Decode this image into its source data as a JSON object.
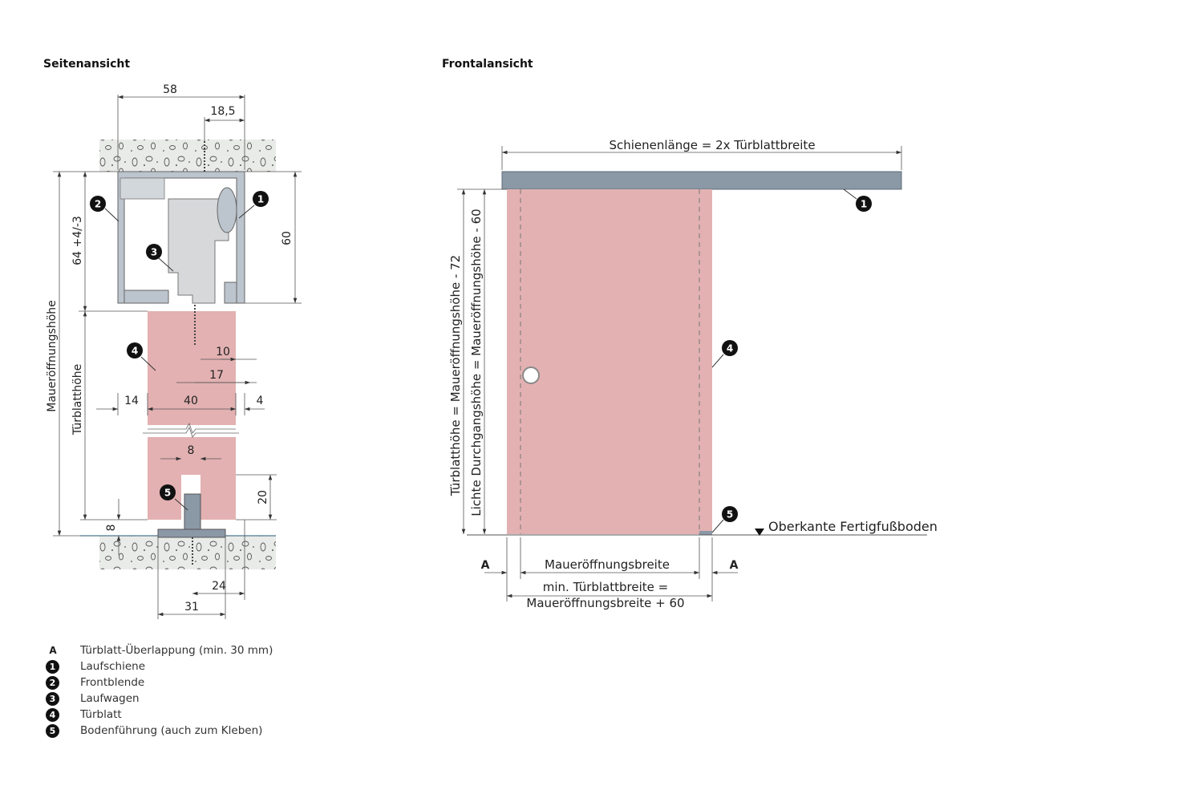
{
  "headings": {
    "side_view": "Seitenansicht",
    "front_view": "Frontalansicht"
  },
  "colors": {
    "door": "#e3b1b2",
    "rail": "#8b98a6",
    "profile": "#bcc4cd",
    "carriage": "#d6d8da",
    "concrete": "#e9ebe8",
    "line": "#333333"
  },
  "side_view": {
    "dims": {
      "total_depth": "58",
      "rail_offset": "18,5",
      "rail_height": "64 +4/-3",
      "rail_height_inner": "60",
      "opening_height": "Maueröffnungshöhe",
      "door_height": "Türblatthöhe",
      "screw_offset": "10",
      "screw_offset_2": "17",
      "gap_left": "14",
      "door_thickness": "40",
      "gap_right": "4",
      "groove_width": "8",
      "groove_depth": "20",
      "floor_gap": "8",
      "guide_offset": "24",
      "guide_width": "31"
    },
    "markers": [
      "2",
      "1",
      "3",
      "4",
      "5"
    ]
  },
  "front_view": {
    "rail_length": "Schienenlänge = 2x Türblattbreite",
    "door_height": "Türblatthöhe = Maueröffnungshöhe - 72",
    "clear_height": "Lichte Durchgangshöhe = Maueröffnungshöhe - 60",
    "floor_label": "Oberkante Fertigfußboden",
    "opening_width": "Maueröffnungsbreite",
    "min_door_width_1": "min. Türblattbreite =",
    "min_door_width_2": "Maueröffnungsbreite + 60",
    "overlap_left": "A",
    "overlap_right": "A",
    "markers": [
      "1",
      "4",
      "5"
    ]
  },
  "legend": [
    {
      "key": "A",
      "label": "Türblatt-Überlappung (min. 30 mm)"
    },
    {
      "key": "1",
      "label": "Laufschiene"
    },
    {
      "key": "2",
      "label": "Frontblende"
    },
    {
      "key": "3",
      "label": "Laufwagen"
    },
    {
      "key": "4",
      "label": "Türblatt"
    },
    {
      "key": "5",
      "label": "Bodenführung (auch zum Kleben)"
    }
  ]
}
